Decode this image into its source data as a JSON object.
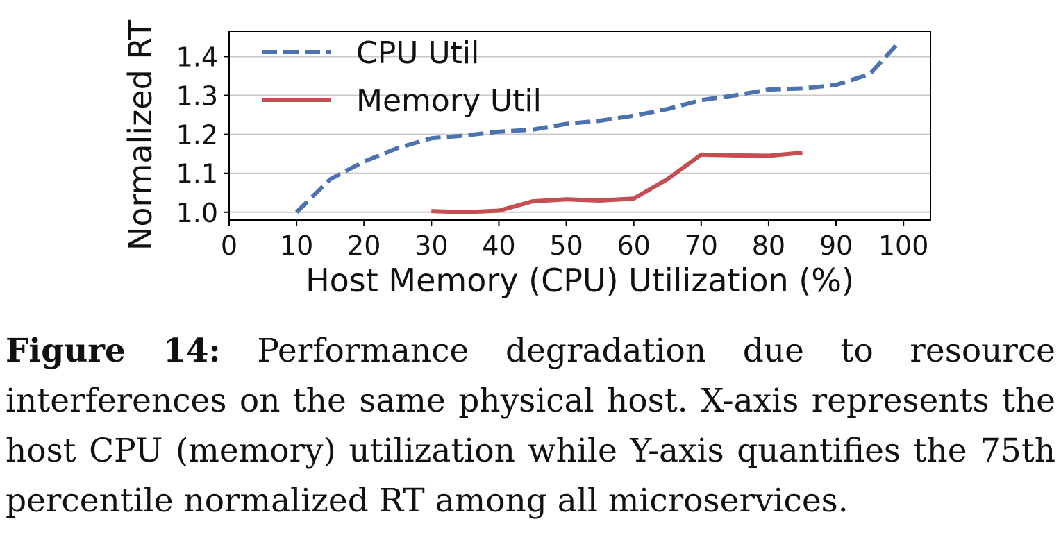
{
  "chart_data": {
    "type": "line",
    "xlabel": "Host Memory (CPU) Utilization (%)",
    "ylabel": "Normalized RT",
    "xlim": [
      0,
      104
    ],
    "ylim": [
      0.98,
      1.465
    ],
    "xticks": [
      0,
      10,
      20,
      30,
      40,
      50,
      60,
      70,
      80,
      90,
      100
    ],
    "xtick_labels": [
      "0",
      "10",
      "20",
      "30",
      "40",
      "50",
      "60",
      "70",
      "80",
      "90",
      "100"
    ],
    "yticks": [
      1.0,
      1.1,
      1.2,
      1.3,
      1.4
    ],
    "ytick_labels": [
      "1.0",
      "1.1",
      "1.2",
      "1.3",
      "1.4"
    ],
    "grid": "horizontal",
    "legend_position": "top-left",
    "series": [
      {
        "name": "CPU Util",
        "style": "dashed",
        "color": "#4c72b0",
        "x": [
          10,
          15,
          20,
          25,
          30,
          35,
          40,
          45,
          50,
          55,
          60,
          65,
          70,
          75,
          80,
          85,
          90,
          95,
          99
        ],
        "values": [
          1.0,
          1.085,
          1.13,
          1.165,
          1.19,
          1.197,
          1.207,
          1.212,
          1.227,
          1.235,
          1.248,
          1.265,
          1.288,
          1.3,
          1.315,
          1.318,
          1.327,
          1.355,
          1.43
        ]
      },
      {
        "name": "Memory Util",
        "style": "solid",
        "color": "#c44e52",
        "x": [
          30,
          35,
          40,
          45,
          50,
          55,
          60,
          65,
          70,
          75,
          80,
          85
        ],
        "values": [
          1.003,
          1.0,
          1.004,
          1.028,
          1.033,
          1.03,
          1.035,
          1.085,
          1.148,
          1.146,
          1.145,
          1.153
        ]
      }
    ]
  },
  "caption": {
    "label": "Figure 14:",
    "text": " Performance degradation due to resource interferences on the same physical host. X-axis represents the host CPU (memory) utilization while Y-axis quantifies the 75th percentile normalized RT among all microservices."
  }
}
